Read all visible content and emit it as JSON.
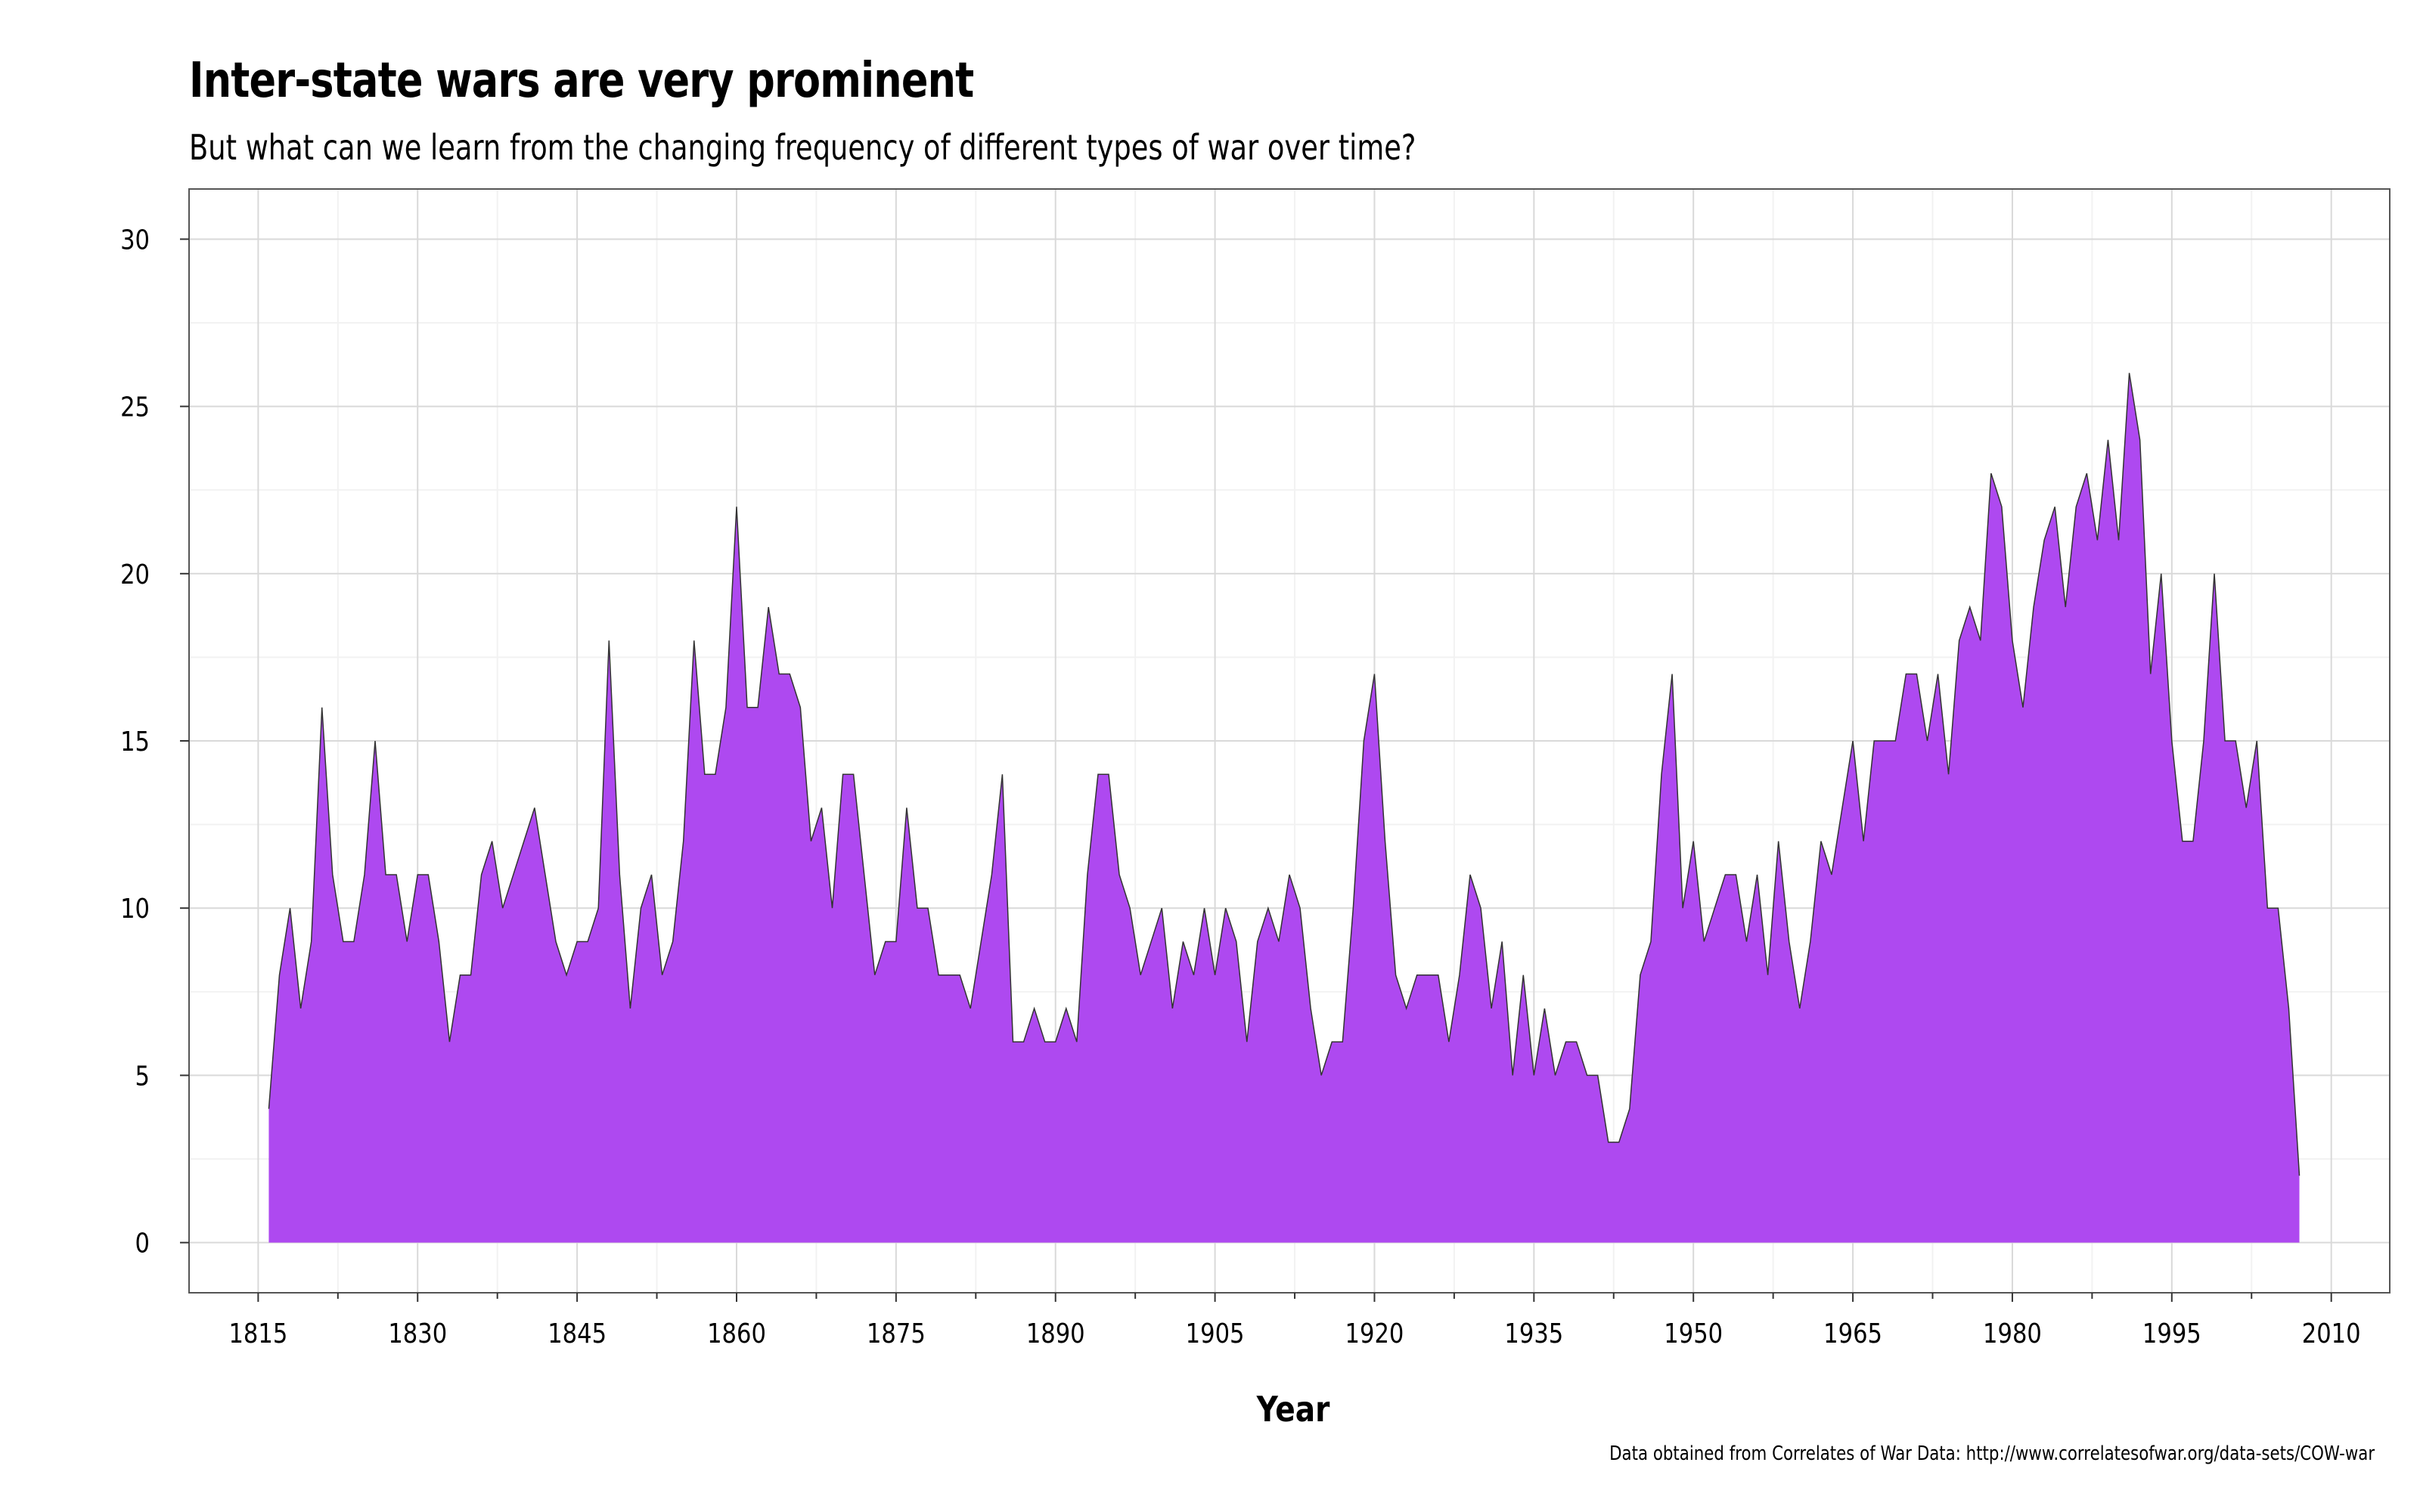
{
  "chart_data": {
    "type": "area",
    "title": "Inter-state wars are very prominent",
    "subtitle": "But what can we learn from the changing frequency of different types of war over time?",
    "xlabel": "Year",
    "ylabel": "",
    "caption": "Data obtained from Correlates of War Data: http://www.correlatesofwar.org/data-sets/COW-war",
    "xlim": [
      1808.5,
      2015.5
    ],
    "ylim": [
      -1.5,
      31.5
    ],
    "x_ticks": [
      1815,
      1830,
      1845,
      1860,
      1875,
      1890,
      1905,
      1920,
      1935,
      1950,
      1965,
      1980,
      1995,
      2010
    ],
    "y_ticks": [
      0,
      5,
      10,
      15,
      20,
      25,
      30
    ],
    "grid": true,
    "colors": {
      "fill": "#AE49F0",
      "stroke": "#333333",
      "grid_major": "#D9D9D9",
      "grid_minor": "#F2F2F2"
    },
    "x": [
      1816,
      1817,
      1818,
      1819,
      1820,
      1821,
      1822,
      1823,
      1824,
      1825,
      1826,
      1827,
      1828,
      1829,
      1830,
      1831,
      1832,
      1833,
      1834,
      1835,
      1836,
      1837,
      1838,
      1839,
      1840,
      1841,
      1842,
      1843,
      1844,
      1845,
      1846,
      1847,
      1848,
      1849,
      1850,
      1851,
      1852,
      1853,
      1854,
      1855,
      1856,
      1857,
      1858,
      1859,
      1860,
      1861,
      1862,
      1863,
      1864,
      1865,
      1866,
      1867,
      1868,
      1869,
      1870,
      1871,
      1872,
      1873,
      1874,
      1875,
      1876,
      1877,
      1878,
      1879,
      1880,
      1881,
      1882,
      1883,
      1884,
      1885,
      1886,
      1887,
      1888,
      1889,
      1890,
      1891,
      1892,
      1893,
      1894,
      1895,
      1896,
      1897,
      1898,
      1899,
      1900,
      1901,
      1902,
      1903,
      1904,
      1905,
      1906,
      1907,
      1908,
      1909,
      1910,
      1911,
      1912,
      1913,
      1914,
      1915,
      1916,
      1917,
      1918,
      1919,
      1920,
      1921,
      1922,
      1923,
      1924,
      1925,
      1926,
      1927,
      1928,
      1929,
      1930,
      1931,
      1932,
      1933,
      1934,
      1935,
      1936,
      1937,
      1938,
      1939,
      1940,
      1941,
      1942,
      1943,
      1944,
      1945,
      1946,
      1947,
      1948,
      1949,
      1950,
      1951,
      1952,
      1953,
      1954,
      1955,
      1956,
      1957,
      1958,
      1959,
      1960,
      1961,
      1962,
      1963,
      1964,
      1965,
      1966,
      1967,
      1968,
      1969,
      1970,
      1971,
      1972,
      1973,
      1974,
      1975,
      1976,
      1977,
      1978,
      1979,
      1980,
      1981,
      1982,
      1983,
      1984,
      1985,
      1986,
      1987,
      1988,
      1989,
      1990,
      1991,
      1992,
      1993,
      1994,
      1995,
      1996,
      1997,
      1998,
      1999,
      2000,
      2001,
      2002,
      2003,
      2004,
      2005,
      2006,
      2007
    ],
    "series": [
      {
        "values": [
          4,
          8,
          10,
          7,
          9,
          16,
          11,
          9,
          9,
          11,
          15,
          11,
          11,
          9,
          11,
          11,
          9,
          6,
          8,
          8,
          11,
          12,
          10,
          11,
          12,
          13,
          11,
          9,
          8,
          9,
          9,
          10,
          18,
          11,
          7,
          10,
          11,
          8,
          9,
          12,
          18,
          14,
          14,
          16,
          22,
          16,
          16,
          19,
          17,
          17,
          16,
          12,
          13,
          10,
          14,
          14,
          11,
          8,
          9,
          9,
          13,
          10,
          10,
          8,
          8,
          8,
          7,
          9,
          11,
          14,
          6,
          6,
          7,
          6,
          6,
          7,
          6,
          11,
          14,
          14,
          11,
          10,
          8,
          9,
          10,
          7,
          9,
          8,
          10,
          8,
          10,
          9,
          6,
          9,
          10,
          9,
          11,
          10,
          7,
          5,
          6,
          6,
          10,
          15,
          17,
          12,
          8,
          7,
          8,
          8,
          8,
          6,
          8,
          11,
          10,
          7,
          9,
          5,
          8,
          5,
          7,
          5,
          6,
          6,
          5,
          5,
          3,
          3,
          4,
          8,
          9,
          14,
          17,
          10,
          12,
          9,
          10,
          11,
          11,
          9,
          11,
          8,
          12,
          9,
          7,
          9,
          12,
          11,
          13,
          15,
          12,
          15,
          15,
          15,
          17,
          17,
          15,
          17,
          14,
          18,
          19,
          18,
          23,
          22,
          18,
          16,
          19,
          21,
          22,
          19,
          22,
          23,
          21,
          24,
          21,
          26,
          24,
          17,
          20,
          15,
          12,
          12,
          15,
          20,
          15,
          15,
          13,
          15,
          10,
          10,
          7,
          2
        ]
      }
    ]
  }
}
